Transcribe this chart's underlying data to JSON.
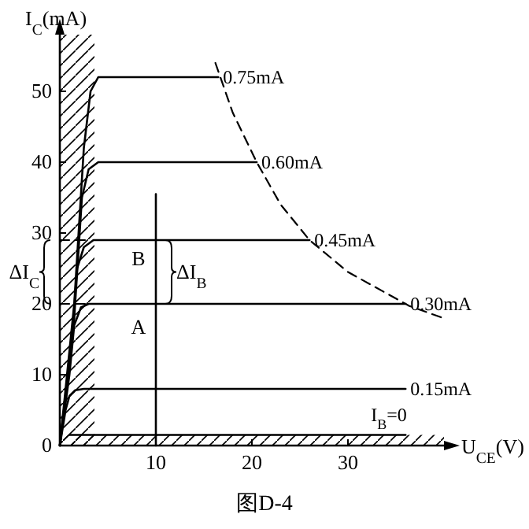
{
  "chart_data": {
    "type": "line",
    "ylabel": "I$_{C}$(mA)",
    "xlabel": "U$_{CE}$(V)",
    "xlim": [
      0,
      40
    ],
    "ylim": [
      0,
      58
    ],
    "xticks": [
      10,
      20,
      30
    ],
    "yticks": [
      0,
      10,
      20,
      30,
      40,
      50
    ],
    "line_style": "solid",
    "series": [
      {
        "name": "0.75mA",
        "color": "#000000",
        "x": [
          0,
          1.5,
          2.5,
          3.2,
          4,
          16.5
        ],
        "values": [
          0,
          20,
          42,
          50,
          52,
          52
        ]
      },
      {
        "name": "0.60mA",
        "color": "#000000",
        "x": [
          0,
          1.5,
          2.3,
          3,
          4,
          20.5
        ],
        "values": [
          0,
          18,
          35,
          39,
          40,
          40
        ]
      },
      {
        "name": "0.45mA",
        "color": "#000000",
        "x": [
          0,
          1.2,
          1.8,
          2.5,
          3.5,
          26
        ],
        "values": [
          0,
          14,
          25,
          28,
          29,
          29
        ]
      },
      {
        "name": "0.30mA",
        "color": "#000000",
        "x": [
          0,
          1,
          1.5,
          2.2,
          3,
          36
        ],
        "values": [
          0,
          10,
          17,
          19.5,
          20,
          20
        ]
      },
      {
        "name": "0.15mA",
        "color": "#000000",
        "x": [
          0,
          0.6,
          1,
          1.6,
          2.5,
          36
        ],
        "values": [
          0,
          5,
          7,
          7.8,
          8,
          8
        ]
      },
      {
        "name": "I$_{B}$=0",
        "color": "#000000",
        "x": [
          1,
          36
        ],
        "values": [
          1.5,
          1.5
        ]
      },
      {
        "color": "#000000",
        "line_style": "dashed",
        "x": [
          16.2,
          18,
          20.5,
          23,
          26,
          30,
          34,
          36.4,
          39.7
        ],
        "values": [
          54,
          47,
          40,
          34,
          29,
          24.5,
          21.5,
          19.7,
          18.1
        ]
      },
      {
        "color": "#000000",
        "x": [
          10,
          10
        ],
        "values": [
          0,
          35.5
        ]
      },
      {
        "color": "#000000",
        "line_style": "dashed",
        "x": [
          0,
          3
        ],
        "values": [
          29,
          29
        ]
      },
      {
        "color": "#000000",
        "line_style": "dashed",
        "x": [
          0,
          3
        ],
        "values": [
          20,
          20
        ]
      }
    ],
    "bands": [
      {
        "axis": "x",
        "from": 0,
        "to": 3.6,
        "color": "#000000"
      },
      {
        "axis": "y",
        "from": 0,
        "to": 1.5,
        "color": "#000000"
      }
    ],
    "annotations": [
      {
        "text": "A",
        "x": 10,
        "y": 20
      },
      {
        "text": "B",
        "x": 10,
        "y": 29
      },
      "ΔI$_{C}$",
      "ΔI$_{B}$",
      "图D-4"
    ]
  }
}
